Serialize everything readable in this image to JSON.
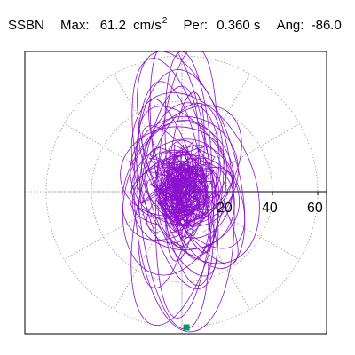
{
  "header": {
    "station": "SSBN",
    "max_label": "Max:",
    "max_value": "61.2",
    "max_unit": "cm/s",
    "max_unit_sup": "2",
    "per_label": "Per:",
    "per_value": "0.360 s",
    "ang_label": "Ang:",
    "ang_value": "-86.0"
  },
  "chart_data": {
    "type": "polar-orbit",
    "radial_ticks": [
      "20",
      "40",
      "60"
    ],
    "radial_tick_values": [
      20,
      40,
      60
    ],
    "radial_max": 60,
    "grid": "dotted polar (30° spokes)",
    "max": 61.2,
    "period_s": 0.36,
    "angle_deg": -86.0,
    "trace_color": "#8b10cc",
    "marker_color": "#009966",
    "marker_point": {
      "x": 2,
      "y": -60
    }
  }
}
